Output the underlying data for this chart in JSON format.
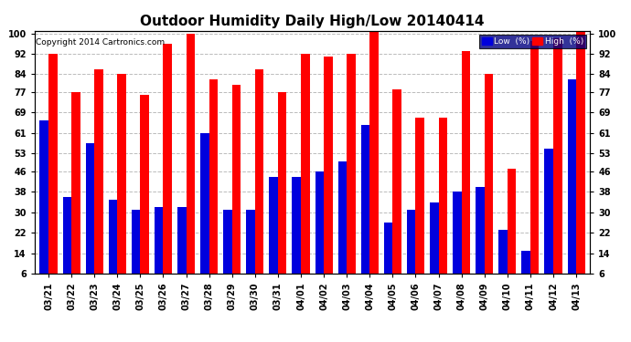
{
  "title": "Outdoor Humidity Daily High/Low 20140414",
  "copyright": "Copyright 2014 Cartronics.com",
  "legend_low": "Low  (%)",
  "legend_high": "High  (%)",
  "categories": [
    "03/21",
    "03/22",
    "03/23",
    "03/24",
    "03/25",
    "03/26",
    "03/27",
    "03/28",
    "03/29",
    "03/30",
    "03/31",
    "04/01",
    "04/02",
    "04/03",
    "04/04",
    "04/05",
    "04/06",
    "04/07",
    "04/08",
    "04/09",
    "04/10",
    "04/11",
    "04/12",
    "04/13"
  ],
  "high_values": [
    92,
    77,
    86,
    84,
    76,
    96,
    100,
    82,
    80,
    86,
    77,
    92,
    91,
    92,
    101,
    78,
    67,
    67,
    93,
    84,
    47,
    97,
    98,
    101
  ],
  "low_values": [
    66,
    36,
    57,
    35,
    31,
    32,
    32,
    61,
    31,
    31,
    44,
    44,
    46,
    50,
    64,
    26,
    31,
    34,
    38,
    40,
    23,
    15,
    55,
    82
  ],
  "bar_color_high": "#FF0000",
  "bar_color_low": "#0000DD",
  "ymin": 6,
  "ymax": 100,
  "yticks": [
    6,
    14,
    22,
    30,
    38,
    46,
    53,
    61,
    69,
    77,
    84,
    92,
    100
  ],
  "background_color": "#FFFFFF",
  "grid_color": "#BBBBBB",
  "title_fontsize": 11,
  "tick_fontsize": 7,
  "bar_width": 0.38,
  "legend_bg": "#000080"
}
